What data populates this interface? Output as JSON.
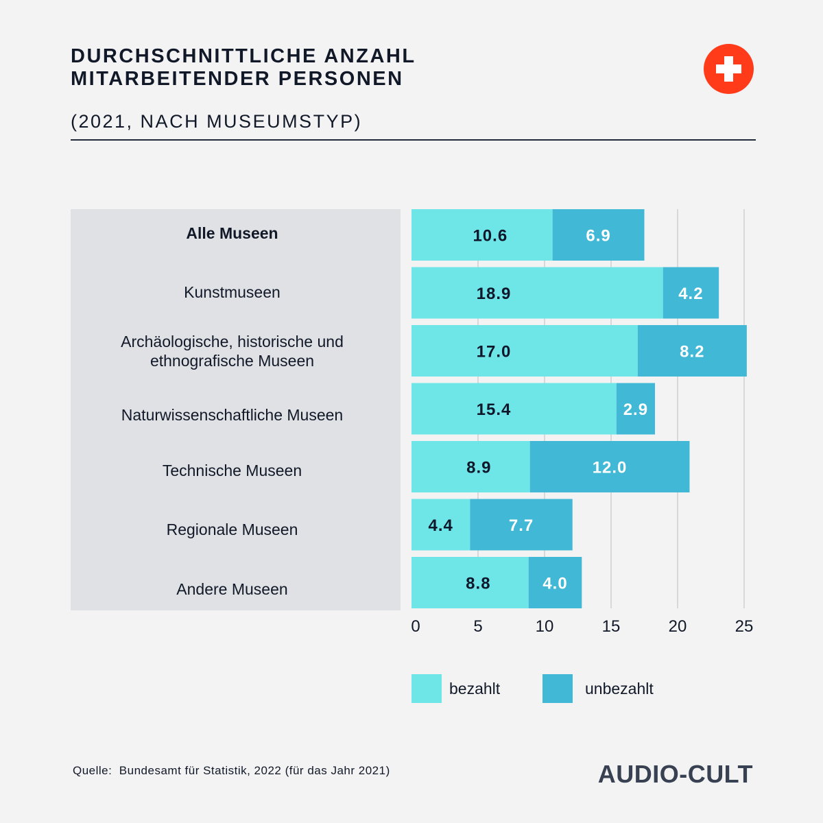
{
  "header": {
    "title_line1": "DURCHSCHNITTLICHE ANZAHL",
    "title_line2": "MITARBEITENDER PERSONEN",
    "subtitle": "(2021, NACH MUSEUMSTYP)",
    "badge_icon": "swiss-cross-icon",
    "badge_color": "#ff3b1a"
  },
  "chart_data": {
    "type": "bar",
    "orientation": "horizontal",
    "stacked": true,
    "categories": [
      "Alle Museen",
      "Kunstmuseen",
      "Archäologische, historische und ethnografische Museen",
      "Naturwissenschaftliche Museen",
      "Technische Museen",
      "Regionale Museen",
      "Andere Museen"
    ],
    "series": [
      {
        "name": "bezahlt",
        "color": "#6ee6e8",
        "values": [
          10.6,
          18.9,
          17.0,
          15.4,
          8.9,
          4.4,
          8.8
        ]
      },
      {
        "name": "unbezahlt",
        "color": "#41b8d5",
        "values": [
          6.9,
          4.2,
          8.2,
          2.9,
          12.0,
          7.7,
          4.0
        ]
      }
    ],
    "xlim": [
      0,
      25
    ],
    "xticks": [
      0,
      5,
      10,
      15,
      20,
      25
    ],
    "grid": "vertical",
    "legend": "bottom",
    "data_labels": true
  },
  "labels": {
    "cat0": "Alle Museen",
    "cat1": "Kunstmuseen",
    "cat2_line1": "Archäologische, historische und",
    "cat2_line2": "ethnografische Museen",
    "cat3": "Naturwissenschaftliche Museen",
    "cat4": "Technische Museen",
    "cat5": "Regionale Museen",
    "cat6": "Andere Museen"
  },
  "legend": {
    "paid": "bezahlt",
    "unpaid": "unbezahlt"
  },
  "footer": {
    "source": "Quelle:  Bundesamt für Statistik, 2022 (für das Jahr 2021)",
    "brand": "AUDIO-CULT"
  }
}
